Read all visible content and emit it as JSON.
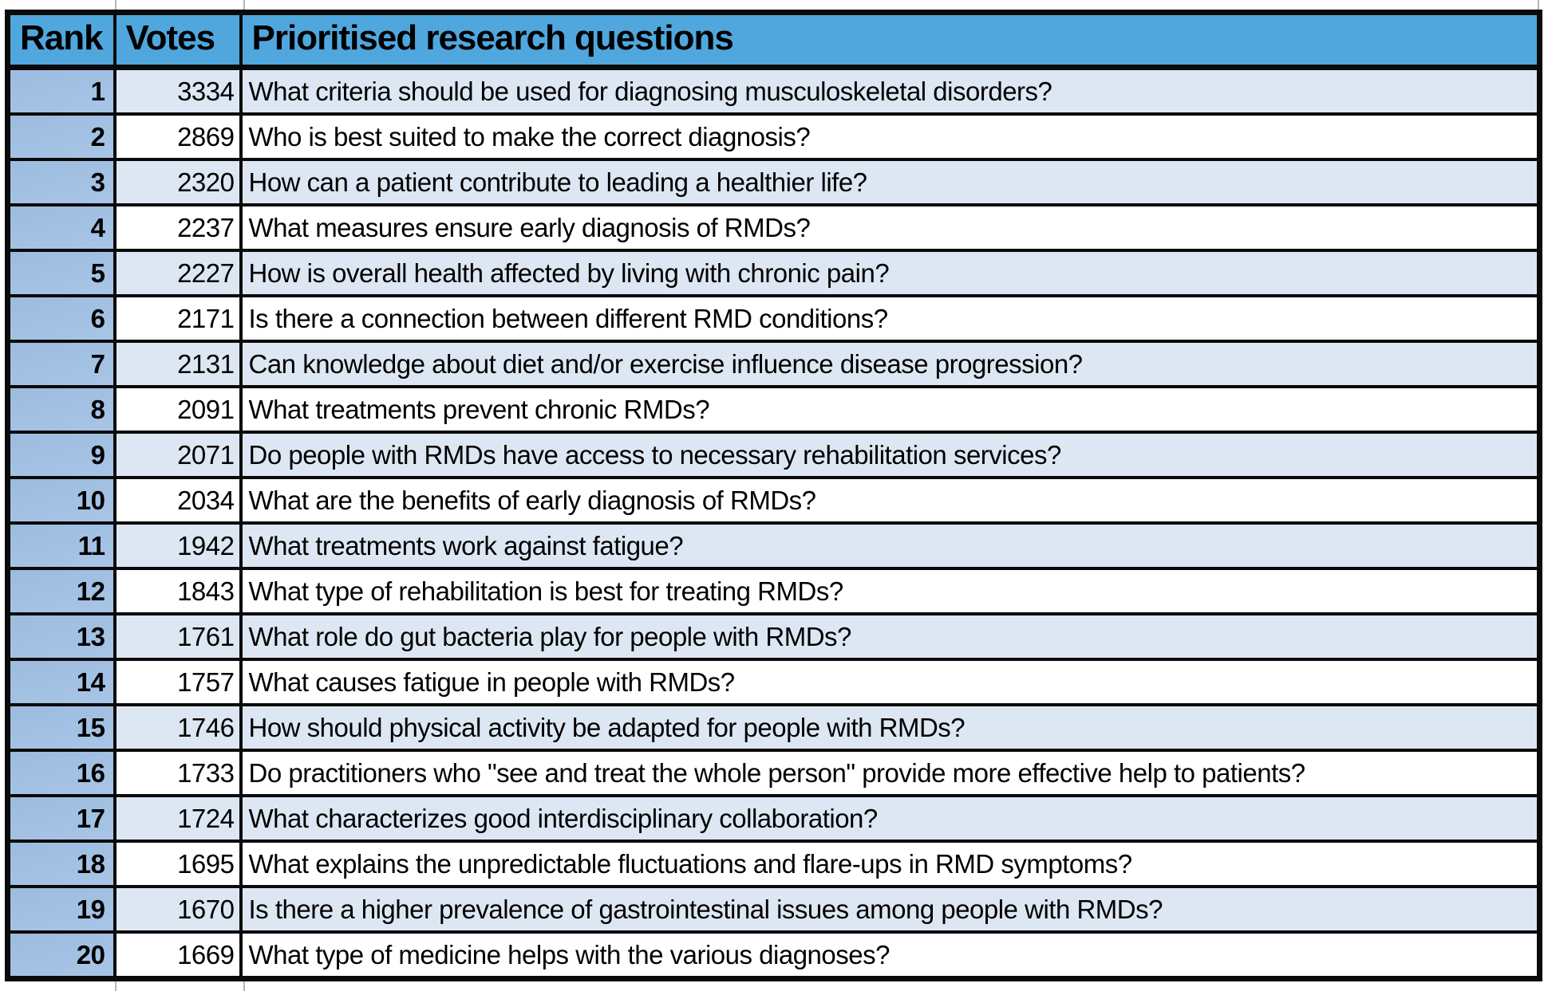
{
  "colors": {
    "header_bg": "#4FA7DE",
    "rank_column_bg": "#A2C1E2",
    "row_odd_bg": "#DDE7F3",
    "row_even_bg": "#FFFFFF",
    "border": "#0A0A0A",
    "text": "#000000"
  },
  "chart_data": {
    "type": "table",
    "title": "Prioritised research questions",
    "columns": [
      "Rank",
      "Votes",
      "Prioritised research questions"
    ],
    "rows": [
      [
        "1",
        "3334",
        "What criteria should be used for diagnosing musculoskeletal disorders?"
      ],
      [
        "2",
        "2869",
        "Who is best suited to make the correct diagnosis?"
      ],
      [
        "3",
        "2320",
        "How can a patient contribute to leading a healthier life?"
      ],
      [
        "4",
        "2237",
        "What measures ensure early diagnosis of RMDs?"
      ],
      [
        "5",
        "2227",
        "How is overall health affected by living with chronic pain?"
      ],
      [
        "6",
        "2171",
        "Is there a connection between different RMD conditions?"
      ],
      [
        "7",
        "2131",
        "Can knowledge about diet and/or exercise influence disease progression?"
      ],
      [
        "8",
        "2091",
        "What treatments prevent chronic RMDs?"
      ],
      [
        "9",
        "2071",
        "Do people with RMDs have access to necessary rehabilitation services?"
      ],
      [
        "10",
        "2034",
        "What are the benefits of early diagnosis of RMDs?"
      ],
      [
        "11",
        "1942",
        "What treatments work against fatigue?"
      ],
      [
        "12",
        "1843",
        "What type of rehabilitation is best for treating RMDs?"
      ],
      [
        "13",
        "1761",
        "What role do gut bacteria play for people with RMDs?"
      ],
      [
        "14",
        "1757",
        "What causes fatigue in people with RMDs?"
      ],
      [
        "15",
        "1746",
        "How should physical activity be adapted for people with RMDs?"
      ],
      [
        "16",
        "1733",
        "Do practitioners who \"see and treat the whole person\" provide more effective help to patients?"
      ],
      [
        "17",
        "1724",
        "What characterizes good interdisciplinary collaboration?"
      ],
      [
        "18",
        "1695",
        "What explains the unpredictable fluctuations and flare-ups in RMD symptoms?"
      ],
      [
        "19",
        "1670",
        "Is there a higher prevalence of gastrointestinal issues among people with RMDs?"
      ],
      [
        "20",
        "1669",
        "What type of medicine helps with the various diagnoses?"
      ]
    ]
  }
}
